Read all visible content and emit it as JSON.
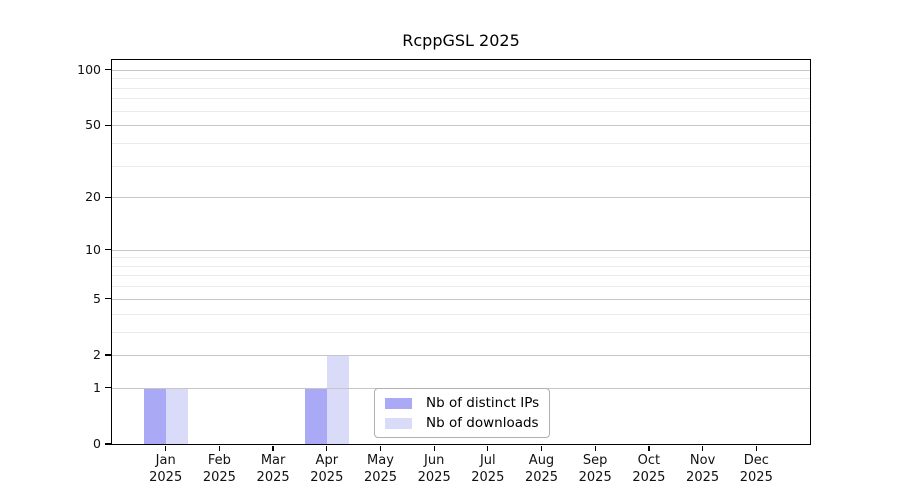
{
  "chart_data": {
    "type": "bar",
    "title": "RcppGSL 2025",
    "categories": [
      "Jan 2025",
      "Feb 2025",
      "Mar 2025",
      "Apr 2025",
      "May 2025",
      "Jun 2025",
      "Jul 2025",
      "Aug 2025",
      "Sep 2025",
      "Oct 2025",
      "Nov 2025",
      "Dec 2025"
    ],
    "series": [
      {
        "name": "Nb of distinct IPs",
        "color": "#a9a9f5",
        "values": [
          1,
          0,
          0,
          1,
          0,
          0,
          0,
          0,
          0,
          0,
          0,
          0
        ]
      },
      {
        "name": "Nb of downloads",
        "color": "#dadaf9",
        "values": [
          1,
          0,
          0,
          2,
          0,
          0,
          0,
          0,
          0,
          0,
          0,
          0
        ]
      }
    ],
    "xlabel": "",
    "ylabel": "",
    "yscale": "log1p",
    "ylim": [
      0,
      113
    ],
    "yticks_major": [
      0,
      1,
      2,
      5,
      10,
      20,
      50,
      100
    ],
    "yticks_minor": [
      3,
      4,
      6,
      7,
      8,
      9,
      30,
      40,
      60,
      70,
      80,
      90
    ],
    "grid": true,
    "grid_major_color": "#c6c6c6",
    "grid_minor_color": "#eaeaea",
    "axis_color": "#000000",
    "legend_position": "inside-bottom-center"
  }
}
